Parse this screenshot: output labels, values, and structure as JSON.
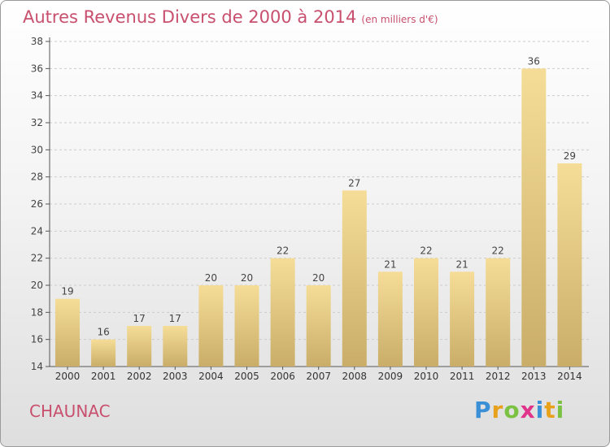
{
  "title": "Autres Revenus Divers de 2000 à 2014",
  "unit_note": "(en milliers d'€)",
  "place_name": "CHAUNAC",
  "logo": {
    "text": "Proxiti",
    "letters": [
      {
        "ch": "P",
        "color": "#3a8fd6"
      },
      {
        "ch": "r",
        "color": "#e8a11a"
      },
      {
        "ch": "o",
        "color": "#7cc242"
      },
      {
        "ch": "x",
        "color": "#e0348a"
      },
      {
        "ch": "i",
        "color": "#3a8fd6"
      },
      {
        "ch": "t",
        "color": "#e8a11a"
      },
      {
        "ch": "i",
        "color": "#7cc242"
      }
    ]
  },
  "colors": {
    "title": "#c8506e",
    "bar_top": "#f5dd98",
    "bar_bottom": "#c9ad68",
    "axis": "#555555",
    "grid": "#cccccc"
  },
  "chart_data": {
    "type": "bar",
    "categories": [
      "2000",
      "2001",
      "2002",
      "2003",
      "2004",
      "2005",
      "2006",
      "2007",
      "2008",
      "2009",
      "2010",
      "2011",
      "2012",
      "2013",
      "2014"
    ],
    "values": [
      19,
      16,
      17,
      17,
      20,
      20,
      22,
      20,
      27,
      21,
      22,
      21,
      22,
      36,
      29
    ],
    "ylim": [
      14,
      38
    ],
    "yticks": [
      14,
      16,
      18,
      20,
      22,
      24,
      26,
      28,
      30,
      32,
      34,
      36,
      38
    ],
    "grid": "horizontal dashed",
    "data_labels": true
  }
}
